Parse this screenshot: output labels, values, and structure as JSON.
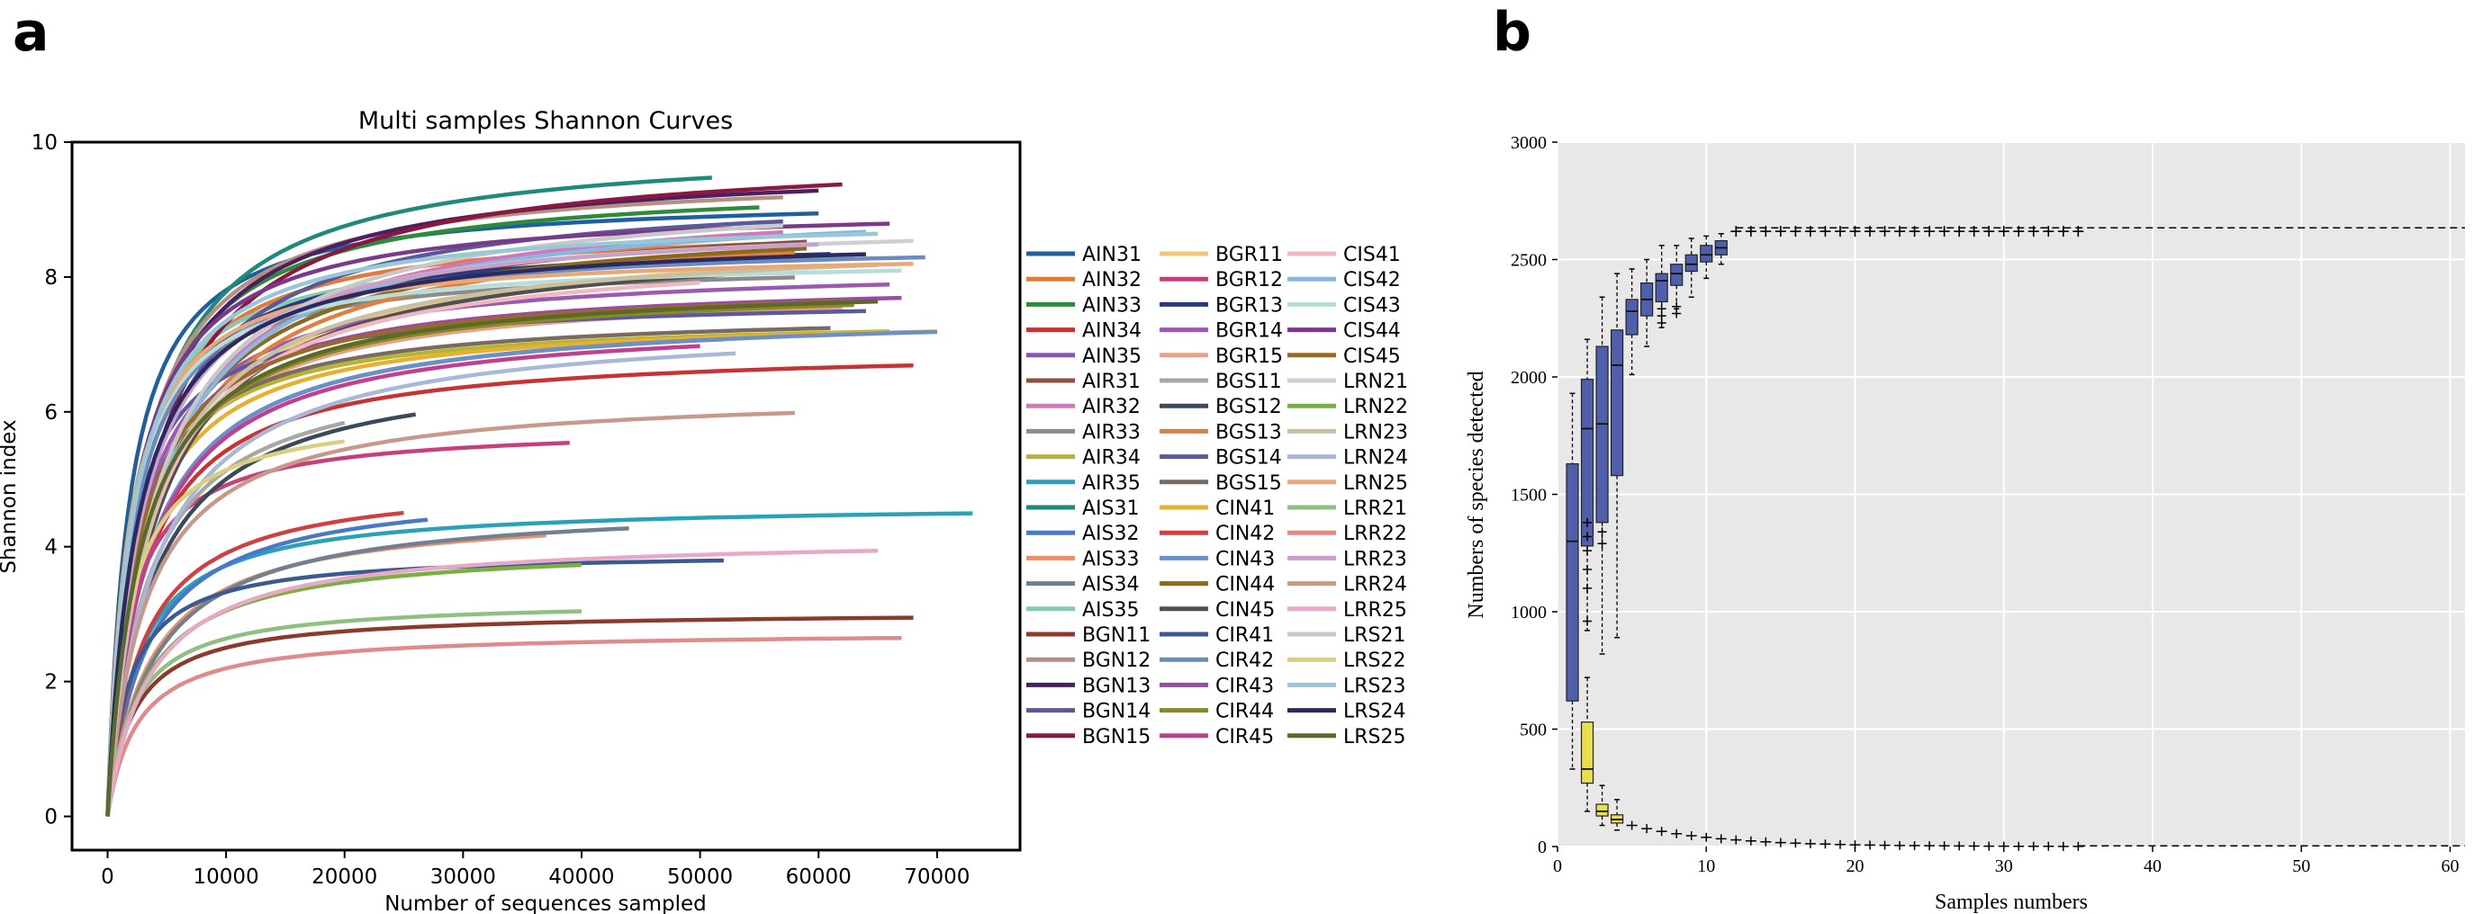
{
  "panel_a": {
    "label": "a",
    "chart_data": {
      "type": "line",
      "title": "Multi samples Shannon Curves",
      "xlabel": "Number of sequences sampled",
      "ylabel": "Shannon index",
      "xlim": [
        -3000,
        77000
      ],
      "ylim": [
        -0.5,
        10
      ],
      "xticks": [
        "0",
        "10000",
        "20000",
        "30000",
        "40000",
        "50000",
        "60000",
        "70000"
      ],
      "yticks": [
        "0",
        "2",
        "4",
        "6",
        "8",
        "10"
      ],
      "grid": false,
      "legend_position": "right, outside plot, 3 columns",
      "series": [
        {
          "name": "AIN31",
          "color": "#1f5fa0",
          "plateau": 8.95,
          "max_x": 60000
        },
        {
          "name": "AIN32",
          "color": "#e07b39",
          "plateau": 8.5,
          "max_x": 55000
        },
        {
          "name": "AIN33",
          "color": "#2e8b3a",
          "plateau": 9.05,
          "max_x": 55000
        },
        {
          "name": "AIN34",
          "color": "#c83232",
          "plateau": 6.7,
          "max_x": 68000
        },
        {
          "name": "AIN35",
          "color": "#8a55b0",
          "plateau": 7.1,
          "max_x": 52000
        },
        {
          "name": "AIR31",
          "color": "#8c5040",
          "plateau": 8.55,
          "max_x": 59000
        },
        {
          "name": "AIR32",
          "color": "#d477b8",
          "plateau": 8.7,
          "max_x": 57000
        },
        {
          "name": "AIR33",
          "color": "#8c8c8c",
          "plateau": 8.0,
          "max_x": 58000
        },
        {
          "name": "AIR34",
          "color": "#b5b531",
          "plateau": 7.2,
          "max_x": 66000
        },
        {
          "name": "AIR35",
          "color": "#29a1b8",
          "plateau": 4.5,
          "max_x": 73000
        },
        {
          "name": "AIS31",
          "color": "#1d8a7a",
          "plateau": 9.5,
          "max_x": 51000
        },
        {
          "name": "AIS32",
          "color": "#4a78c8",
          "plateau": 4.45,
          "max_x": 27000
        },
        {
          "name": "AIS33",
          "color": "#e8906a",
          "plateau": 4.2,
          "max_x": 37000
        },
        {
          "name": "AIS34",
          "color": "#708090",
          "plateau": 4.3,
          "max_x": 44000
        },
        {
          "name": "AIS35",
          "color": "#86c8b0",
          "plateau": 8.3,
          "max_x": 63000
        },
        {
          "name": "BGN11",
          "color": "#8c3a2a",
          "plateau": 2.95,
          "max_x": 68000
        },
        {
          "name": "BGN12",
          "color": "#b59080",
          "plateau": 9.2,
          "max_x": 57000
        },
        {
          "name": "BGN13",
          "color": "#4a2060",
          "plateau": 9.3,
          "max_x": 60000
        },
        {
          "name": "BGN14",
          "color": "#5a5a9a",
          "plateau": 8.85,
          "max_x": 57000
        },
        {
          "name": "BGN15",
          "color": "#8a1840",
          "plateau": 9.4,
          "max_x": 62000
        },
        {
          "name": "BGR11",
          "color": "#f0c878",
          "plateau": 8.2,
          "max_x": 60000
        },
        {
          "name": "BGR12",
          "color": "#c8407a",
          "plateau": 5.55,
          "max_x": 39000
        },
        {
          "name": "BGR13",
          "color": "#2a3a7a",
          "plateau": 8.35,
          "max_x": 61000
        },
        {
          "name": "BGR14",
          "color": "#9a5ab0",
          "plateau": 7.9,
          "max_x": 66000
        },
        {
          "name": "BGR15",
          "color": "#e8a088",
          "plateau": 7.55,
          "max_x": 62000
        },
        {
          "name": "BGS11",
          "color": "#a8a8a0",
          "plateau": 5.95,
          "max_x": 20000
        },
        {
          "name": "BGS12",
          "color": "#3a4a5a",
          "plateau": 6.05,
          "max_x": 26000
        },
        {
          "name": "BGS13",
          "color": "#e08040",
          "plateau": 8.4,
          "max_x": 58000
        },
        {
          "name": "BGS14",
          "color": "#5a5aa0",
          "plateau": 7.5,
          "max_x": 64000
        },
        {
          "name": "BGS15",
          "color": "#7a6a60",
          "plateau": 7.25,
          "max_x": 61000
        },
        {
          "name": "CIN41",
          "color": "#e8b030",
          "plateau": 7.2,
          "max_x": 70000
        },
        {
          "name": "CIN42",
          "color": "#d04040",
          "plateau": 4.55,
          "max_x": 25000
        },
        {
          "name": "CIN43",
          "color": "#6a90c8",
          "plateau": 7.2,
          "max_x": 70000
        },
        {
          "name": "CIN44",
          "color": "#8a6a20",
          "plateau": 8.45,
          "max_x": 59000
        },
        {
          "name": "CIN45",
          "color": "#505050",
          "plateau": 8.1,
          "max_x": 55000
        },
        {
          "name": "CIR41",
          "color": "#3a5a90",
          "plateau": 3.8,
          "max_x": 52000
        },
        {
          "name": "CIR42",
          "color": "#6a8ac0",
          "plateau": 8.3,
          "max_x": 69000
        },
        {
          "name": "CIR43",
          "color": "#9a4aa8",
          "plateau": 7.7,
          "max_x": 67000
        },
        {
          "name": "CIR44",
          "color": "#8a8a20",
          "plateau": 7.6,
          "max_x": 63000
        },
        {
          "name": "CIR45",
          "color": "#c04090",
          "plateau": 7.0,
          "max_x": 50000
        },
        {
          "name": "CIS41",
          "color": "#f0b8c0",
          "plateau": 7.95,
          "max_x": 50000
        },
        {
          "name": "CIS42",
          "color": "#88b8e0",
          "plateau": 8.7,
          "max_x": 64000
        },
        {
          "name": "CIS43",
          "color": "#b8dcd8",
          "plateau": 8.1,
          "max_x": 67000
        },
        {
          "name": "CIS44",
          "color": "#7a3a8a",
          "plateau": 8.8,
          "max_x": 66000
        },
        {
          "name": "CIS45",
          "color": "#9a6a2a",
          "plateau": 7.65,
          "max_x": 63000
        },
        {
          "name": "LRN21",
          "color": "#d0d0d0",
          "plateau": 8.55,
          "max_x": 68000
        },
        {
          "name": "LRN22",
          "color": "#7ab040",
          "plateau": 3.75,
          "max_x": 40000
        },
        {
          "name": "LRN23",
          "color": "#c8c0a0",
          "plateau": 8.2,
          "max_x": 65000
        },
        {
          "name": "LRN24",
          "color": "#a8b8d8",
          "plateau": 6.9,
          "max_x": 53000
        },
        {
          "name": "LRN25",
          "color": "#e8a878",
          "plateau": 8.2,
          "max_x": 68000
        },
        {
          "name": "LRR21",
          "color": "#90c080",
          "plateau": 3.05,
          "max_x": 40000
        },
        {
          "name": "LRR22",
          "color": "#e08a8a",
          "plateau": 2.65,
          "max_x": 67000
        },
        {
          "name": "LRR23",
          "color": "#c8a0c8",
          "plateau": 8.5,
          "max_x": 60000
        },
        {
          "name": "LRR24",
          "color": "#c8988a",
          "plateau": 6.0,
          "max_x": 58000
        },
        {
          "name": "LRR25",
          "color": "#e8a8c8",
          "plateau": 3.95,
          "max_x": 65000
        },
        {
          "name": "LRS21",
          "color": "#c8c8c8",
          "plateau": 8.8,
          "max_x": 57000
        },
        {
          "name": "LRS22",
          "color": "#d8d080",
          "plateau": 5.6,
          "max_x": 20000
        },
        {
          "name": "LRS23",
          "color": "#98c8d8",
          "plateau": 8.65,
          "max_x": 65000
        },
        {
          "name": "LRS24",
          "color": "#2a2a60",
          "plateau": 8.35,
          "max_x": 64000
        },
        {
          "name": "LRS25",
          "color": "#5a6a2a",
          "plateau": 7.65,
          "max_x": 65000
        }
      ]
    }
  },
  "panel_b": {
    "label": "b",
    "chart_data": {
      "type": "box",
      "xlabel": "Samples numbers",
      "ylabel": "Numbers of species detected",
      "xlim": [
        0,
        61
      ],
      "ylim": [
        0,
        3000
      ],
      "xticks": [
        "0",
        "10",
        "20",
        "30",
        "40",
        "50",
        "60"
      ],
      "yticks": [
        "0",
        "500",
        "1000",
        "1500",
        "2000",
        "2500",
        "3000"
      ],
      "grid": true,
      "background": "#e8e8e8",
      "upper_series": {
        "name": "",
        "color": "#4f5fab",
        "boxes": [
          {
            "n": 1,
            "q1": 620,
            "median": 1300,
            "q3": 1630,
            "lo": 330,
            "hi": 1930
          },
          {
            "n": 2,
            "q1": 1280,
            "median": 1780,
            "q3": 1990,
            "lo": 920,
            "hi": 2160
          },
          {
            "n": 3,
            "q1": 1380,
            "median": 1800,
            "q3": 2130,
            "lo": 820,
            "hi": 2340
          },
          {
            "n": 4,
            "q1": 1580,
            "median": 2050,
            "q3": 2200,
            "lo": 890,
            "hi": 2440
          },
          {
            "n": 5,
            "q1": 2180,
            "median": 2280,
            "q3": 2330,
            "lo": 2010,
            "hi": 2460
          },
          {
            "n": 6,
            "q1": 2260,
            "median": 2330,
            "q3": 2400,
            "lo": 2130,
            "hi": 2500
          },
          {
            "n": 7,
            "q1": 2320,
            "median": 2410,
            "q3": 2440,
            "lo": 2210,
            "hi": 2560
          },
          {
            "n": 8,
            "q1": 2390,
            "median": 2440,
            "q3": 2480,
            "lo": 2290,
            "hi": 2560
          },
          {
            "n": 9,
            "q1": 2450,
            "median": 2480,
            "q3": 2520,
            "lo": 2340,
            "hi": 2590
          },
          {
            "n": 10,
            "q1": 2490,
            "median": 2520,
            "q3": 2560,
            "lo": 2420,
            "hi": 2600
          },
          {
            "n": 11,
            "q1": 2520,
            "median": 2550,
            "q3": 2580,
            "lo": 2480,
            "hi": 2610
          }
        ],
        "plateau_start": 12,
        "plateau_end": 35,
        "plateau_value": 2620,
        "dashed_value": 2635
      },
      "lower_series": {
        "name": "",
        "color": "#e8e04a",
        "boxes": [
          {
            "n": 2,
            "q1": 270,
            "median": 330,
            "q3": 530,
            "lo": 150,
            "hi": 720
          },
          {
            "n": 3,
            "q1": 130,
            "median": 150,
            "q3": 180,
            "lo": 90,
            "hi": 260
          },
          {
            "n": 4,
            "q1": 100,
            "median": 115,
            "q3": 135,
            "lo": 70,
            "hi": 200
          }
        ],
        "decay_end": 35
      }
    }
  }
}
